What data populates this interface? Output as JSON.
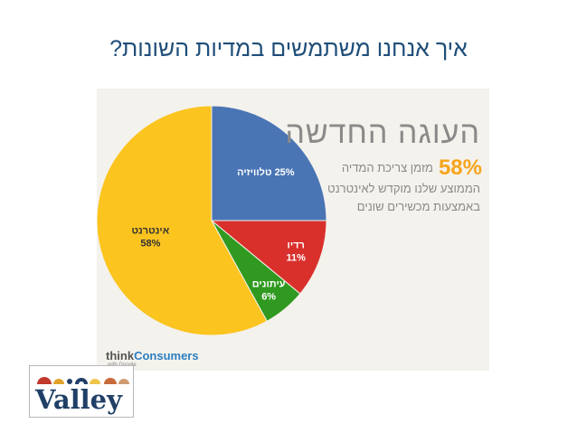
{
  "slide": {
    "title": "איך אנחנו משתמשים במדיות השונות?"
  },
  "figure": {
    "headline": "העוגה החדשה",
    "percent": "58%",
    "line1": "מזמן צריכת המדיה",
    "line2": "הממוצע שלנו מוקדש לאינטרנט",
    "line3": "באמצעות מכשירים שונים",
    "brand_think": "think",
    "brand_consumers": "Consumers",
    "brand_sub": "with Google"
  },
  "logo": {
    "word": "Valley"
  },
  "chart_data": {
    "type": "pie",
    "slices": [
      {
        "label": "טלוויזיה",
        "pct": "25%",
        "value": 25,
        "color": "#4a75b5",
        "label_color": "#ffffff"
      },
      {
        "label": "רדיו",
        "pct": "11%",
        "value": 11,
        "color": "#d9302c",
        "label_color": "#ffffff"
      },
      {
        "label": "עיתונים",
        "pct": "6%",
        "value": 6,
        "color": "#2f9a1f",
        "label_color": "#ffffff"
      },
      {
        "label": "אינטרנט",
        "pct": "58%",
        "value": 58,
        "color": "#fbc41f",
        "label_color": "#333333"
      }
    ],
    "start": "12 o'clock",
    "direction": "clockwise"
  }
}
